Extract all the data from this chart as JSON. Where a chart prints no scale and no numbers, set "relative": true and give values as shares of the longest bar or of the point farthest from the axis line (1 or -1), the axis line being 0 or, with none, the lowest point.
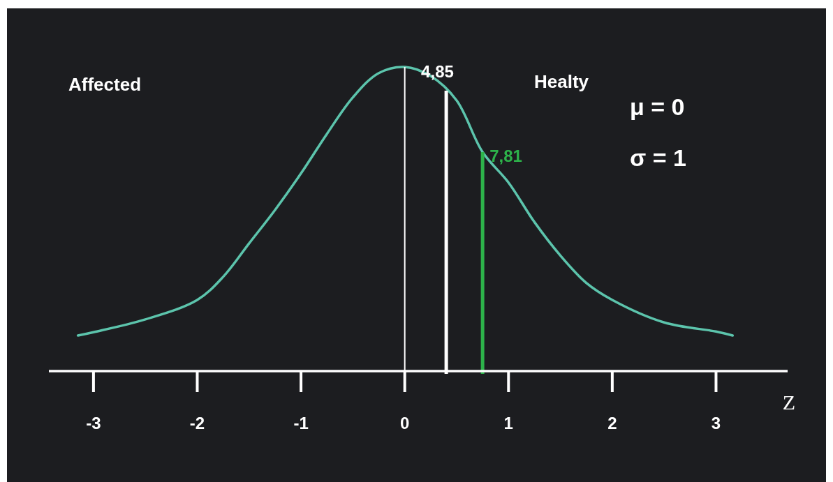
{
  "chart_data": {
    "type": "line",
    "relative": true,
    "xlabel": "Z",
    "xlim": [
      -3.43,
      3.69
    ],
    "xticks": [
      -3,
      -2,
      -1,
      0,
      1,
      2,
      3
    ],
    "grid": false,
    "marker": "none",
    "line_style": "solid",
    "series": [
      {
        "color": "#5cc4ac",
        "x": [
          -3.15,
          -3,
          -2.5,
          -2,
          -1.75,
          -1.5,
          -1.25,
          -1,
          -0.75,
          -0.5,
          -0.25,
          0,
          0.25,
          0.5,
          0.75,
          1,
          1.25,
          1.5,
          1.75,
          2,
          2.5,
          3,
          3.16
        ],
        "values": [
          0.117,
          0.128,
          0.17,
          0.234,
          0.31,
          0.42,
          0.53,
          0.65,
          0.78,
          0.9,
          0.98,
          1,
          0.97,
          0.89,
          0.72,
          0.62,
          0.49,
          0.38,
          0.29,
          0.234,
          0.16,
          0.13,
          0.117
        ]
      }
    ],
    "ref_lines": [
      {
        "axis": "x",
        "value": 0,
        "label": null,
        "color": "#ffffff"
      },
      {
        "axis": "x",
        "value": 0.4,
        "label": null,
        "color": "#ffffff"
      },
      {
        "axis": "x",
        "value": 0.75,
        "label": null,
        "color": "#2db34a"
      }
    ],
    "annotations": [
      "Affected",
      "Healty",
      "μ = 0",
      "σ = 1",
      {
        "text": "4,85",
        "x": 0.4,
        "y": 0.93
      },
      {
        "text": "7,81",
        "x": 0.75,
        "y": 0.72
      }
    ]
  }
}
